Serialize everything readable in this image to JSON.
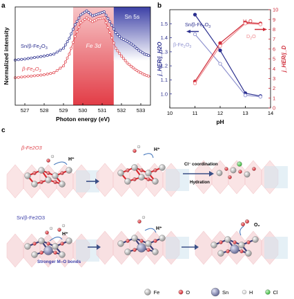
{
  "panels": {
    "a": {
      "letter": "a"
    },
    "b": {
      "letter": "b"
    },
    "c": {
      "letter": "c"
    }
  },
  "chart_data": [
    {
      "panel": "a",
      "type": "line",
      "xlabel": "Photon energy (eV)",
      "ylabel": "Normalized intensity",
      "xlim": [
        526.5,
        533.5
      ],
      "xticks": [
        527,
        528,
        529,
        530,
        531,
        532,
        533
      ],
      "regions": [
        {
          "label": "Fe 3d",
          "x_range": [
            529.5,
            531.6
          ],
          "color": "#e8505a"
        },
        {
          "label": "Sn 5s",
          "x_range": [
            531.6,
            533.5
          ],
          "color": "#3b3ea8"
        }
      ],
      "series": [
        {
          "name": "Sn/β-Fe2O3",
          "color": "#2b2f8f",
          "x": [
            526.5,
            527.0,
            527.5,
            528.0,
            528.5,
            529.0,
            529.3,
            529.6,
            529.9,
            530.2,
            530.5,
            530.8,
            531.1,
            531.4,
            531.7,
            532.0,
            532.3,
            532.6,
            532.9,
            533.2,
            533.5
          ],
          "y": [
            0.46,
            0.47,
            0.485,
            0.5,
            0.52,
            0.58,
            0.68,
            0.82,
            0.92,
            0.96,
            0.91,
            0.93,
            0.95,
            0.85,
            0.74,
            0.68,
            0.65,
            0.61,
            0.56,
            0.52,
            0.5
          ]
        },
        {
          "name": "β-Fe2O3",
          "color": "#e0474f",
          "x": [
            526.5,
            527.0,
            527.5,
            528.0,
            528.5,
            529.0,
            529.3,
            529.6,
            529.9,
            530.2,
            530.5,
            530.8,
            531.1,
            531.4,
            531.7,
            532.0,
            532.3,
            532.6,
            532.9,
            533.2,
            533.5
          ],
          "y": [
            0.28,
            0.29,
            0.3,
            0.31,
            0.33,
            0.4,
            0.52,
            0.7,
            0.84,
            0.89,
            0.85,
            0.88,
            0.89,
            0.74,
            0.58,
            0.5,
            0.43,
            0.38,
            0.34,
            0.31,
            0.29
          ]
        }
      ]
    },
    {
      "panel": "b",
      "type": "line",
      "xlabel": "pH",
      "ylabel_left": "j_HER/j_H2O",
      "ylabel_right": "j_HER/j_D",
      "xlim": [
        10,
        14
      ],
      "xticks": [
        10,
        11,
        12,
        13,
        14
      ],
      "ylim_left": [
        0.9,
        1.6
      ],
      "yticks_left": [
        "1.0",
        "1.1",
        "1.2",
        "1.3",
        "1.4",
        "1.5"
      ],
      "ylim_right": [
        0,
        10
      ],
      "yticks_right": [
        "0",
        "1",
        "2",
        "3",
        "4",
        "5",
        "6",
        "7",
        "8",
        "9",
        "10"
      ],
      "series": [
        {
          "name": "Sn/β-Fe2O3",
          "axis": "left",
          "color": "#2b2f8f",
          "style": "filled",
          "x": [
            11,
            12,
            13,
            13.6
          ],
          "y": [
            1.565,
            1.31,
            1.005,
            0.985
          ]
        },
        {
          "name": "β-Fe2O3",
          "axis": "left",
          "color": "#8f92cf",
          "style": "open",
          "x": [
            11,
            12,
            13,
            13.6
          ],
          "y": [
            1.425,
            1.215,
            0.99,
            0.98
          ]
        },
        {
          "name": "H2O",
          "axis": "right",
          "color": "#cf2a37",
          "style": "filled",
          "x": [
            11,
            12,
            13,
            13.6
          ],
          "y": [
            2.7,
            6.6,
            8.7,
            8.6
          ]
        },
        {
          "name": "D2O",
          "axis": "right",
          "color": "#ef8a8f",
          "style": "open",
          "x": [
            11,
            12,
            13,
            13.6
          ],
          "y": [
            2.5,
            6.3,
            8.6,
            8.5
          ]
        }
      ]
    }
  ],
  "scheme": {
    "row1": {
      "label": "β-Fe2O3",
      "proton_labels": [
        "H⁺",
        "H⁺"
      ],
      "arrow_labels": [
        "Cl⁻ coordination",
        "Hydration"
      ]
    },
    "row2": {
      "label": "Sn/β-Fe2O3",
      "proton_labels": [
        "H⁺",
        "H⁺"
      ],
      "bond_label": "Stronger M–O bonds",
      "o2_label": "O₂"
    },
    "legend": [
      {
        "label": "Fe",
        "color": "#9a9a9a",
        "icon": "fe-atom-icon"
      },
      {
        "label": "O",
        "color": "#d9282f",
        "icon": "o-atom-icon"
      },
      {
        "label": "Sn",
        "color": "#7b7fa8",
        "icon": "sn-atom-icon"
      },
      {
        "label": "H",
        "color": "#f2f2f2",
        "icon": "h-atom-icon"
      },
      {
        "label": "Cl",
        "color": "#3fbf3f",
        "icon": "cl-atom-icon"
      }
    ]
  }
}
